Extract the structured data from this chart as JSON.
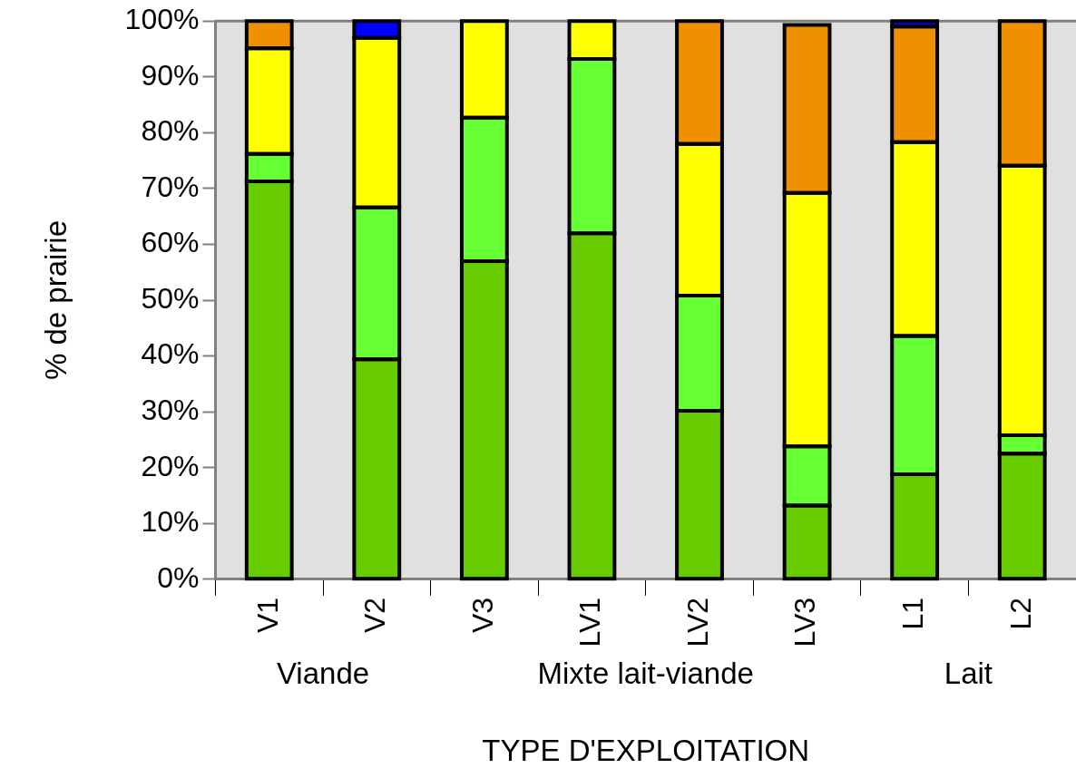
{
  "chart_data": {
    "type": "bar",
    "stacked": true,
    "xlabel": "TYPE D'EXPLOITATION",
    "ylabel": "% de prairie",
    "categories": [
      "V1",
      "V2",
      "V3",
      "LV1",
      "LV2",
      "LV3",
      "L1",
      "L2"
    ],
    "series": [
      {
        "color": "#66cc00",
        "values": [
          71.3,
          39.4,
          57.0,
          62.0,
          30.2,
          13.2,
          18.8,
          22.5
        ]
      },
      {
        "color": "#66ff33",
        "values": [
          4.9,
          27.2,
          25.7,
          31.2,
          20.6,
          10.6,
          24.8,
          3.3
        ]
      },
      {
        "color": "#ffff00",
        "values": [
          18.9,
          30.4,
          17.3,
          6.8,
          27.2,
          45.4,
          34.7,
          48.3
        ]
      },
      {
        "color": "#f09000",
        "values": [
          4.9,
          0,
          0,
          0,
          22.0,
          30.1,
          20.7,
          25.9
        ]
      },
      {
        "color": "#0000ff",
        "values": [
          0,
          3.0,
          0,
          0,
          0,
          null,
          1.0,
          0
        ]
      }
    ],
    "ylim": [
      0,
      100
    ],
    "yticks": [
      {
        "value": 0,
        "label": "0%"
      },
      {
        "value": 10,
        "label": "10%"
      },
      {
        "value": 20,
        "label": "20%"
      },
      {
        "value": 30,
        "label": "30%"
      },
      {
        "value": 40,
        "label": "40%"
      },
      {
        "value": 50,
        "label": "50%"
      },
      {
        "value": 60,
        "label": "60%"
      },
      {
        "value": 70,
        "label": "70%"
      },
      {
        "value": 80,
        "label": "80%"
      },
      {
        "value": 90,
        "label": "90%"
      },
      {
        "value": 100,
        "label": "100%"
      }
    ],
    "annotations": [
      "Viande",
      "Mixte lait-viande",
      "Lait"
    ],
    "grid": false,
    "legend": false
  }
}
